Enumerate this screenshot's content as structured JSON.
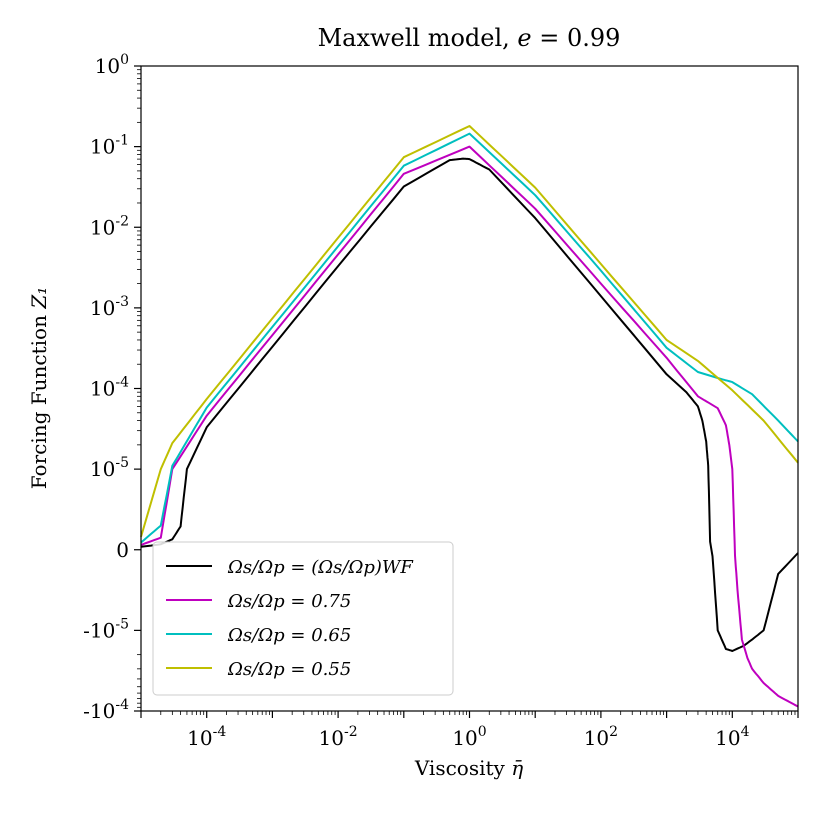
{
  "chart_data": {
    "type": "line",
    "title": "Maxwell model, e = 0.99",
    "xlabel": "Viscosity η̄",
    "ylabel": "Forcing Function Z₁",
    "x_scale": "log",
    "y_scale": "symlog",
    "xlim": [
      1e-05,
      100000.0
    ],
    "ylim": [
      -0.0001,
      1
    ],
    "x_ticks": [
      {
        "value": 0.0001,
        "label": "10-4",
        "base": "10",
        "exp": "-4"
      },
      {
        "value": 0.01,
        "label": "10-2",
        "base": "10",
        "exp": "-2"
      },
      {
        "value": 1,
        "label": "100",
        "base": "10",
        "exp": "0"
      },
      {
        "value": 100,
        "label": "102",
        "base": "10",
        "exp": "2"
      },
      {
        "value": 10000,
        "label": "104",
        "base": "10",
        "exp": "4"
      }
    ],
    "y_ticks": [
      {
        "value": 1,
        "label": "100",
        "base": "10",
        "exp": "0"
      },
      {
        "value": 0.1,
        "label": "10-1",
        "base": "10",
        "exp": "-1"
      },
      {
        "value": 0.01,
        "label": "10-2",
        "base": "10",
        "exp": "-2"
      },
      {
        "value": 0.001,
        "label": "10-3",
        "base": "10",
        "exp": "-3"
      },
      {
        "value": 0.0001,
        "label": "10-4",
        "base": "10",
        "exp": "-4"
      },
      {
        "value": 1e-05,
        "label": "10-5",
        "base": "10",
        "exp": "-5"
      },
      {
        "value": 0,
        "label": "0",
        "base": "0",
        "exp": ""
      },
      {
        "value": -1e-05,
        "label": "-10-5",
        "base": "-10",
        "exp": "-5"
      },
      {
        "value": -0.0001,
        "label": "-10-4",
        "base": "-10",
        "exp": "-4"
      }
    ],
    "legend_position": "lower-left",
    "series": [
      {
        "name": "Ωs/Ωp = (Ωs/Ωp)WF",
        "color": "#000000",
        "x": [
          1e-05,
          2e-05,
          3e-05,
          4e-05,
          5e-05,
          0.0001,
          0.001,
          0.01,
          0.1,
          0.5,
          0.8,
          1,
          2,
          10,
          100,
          1000,
          2000,
          3000,
          3500,
          4000,
          4300,
          4600,
          5000,
          6000,
          8000,
          10000,
          15000,
          20000,
          30000,
          50000,
          100000
        ],
        "y": [
          3.6e-07,
          6.8e-07,
          1.3e-06,
          2.9e-06,
          1e-05,
          3.3e-05,
          0.00033,
          0.0033,
          0.032,
          0.068,
          0.071,
          0.07,
          0.052,
          0.013,
          0.0014,
          0.00015,
          9e-05,
          6e-05,
          4e-05,
          2.2e-05,
          1.1e-05,
          1e-06,
          -8e-07,
          -1e-05,
          -1.7e-05,
          -1.8e-05,
          -1.55e-05,
          -1.3e-05,
          -1e-05,
          -3e-06,
          -4e-07
        ]
      },
      {
        "name": "Ωs/Ωp = 0.75",
        "color": "#bf00bf",
        "x": [
          1e-05,
          2e-05,
          3e-05,
          0.0001,
          0.001,
          0.01,
          0.1,
          1,
          10,
          100,
          1000,
          3000,
          6000,
          8000,
          9000,
          10000,
          11000,
          12000,
          14000,
          17000,
          20000,
          30000,
          50000,
          100000
        ],
        "y": [
          6e-07,
          1.5e-06,
          1e-05,
          4.6e-05,
          0.00046,
          0.0046,
          0.046,
          0.1,
          0.017,
          0.002,
          0.00024,
          8e-05,
          5.7e-05,
          3.5e-05,
          2e-05,
          1e-05,
          -7e-07,
          -5e-06,
          -1.3e-05,
          -2.2e-05,
          -3e-05,
          -4.5e-05,
          -6.5e-05,
          -8.8e-05
        ]
      },
      {
        "name": "Ωs/Ωp = 0.65",
        "color": "#00bfbf",
        "x": [
          1e-05,
          2e-05,
          3e-05,
          0.0001,
          0.001,
          0.01,
          0.1,
          1,
          10,
          100,
          1000,
          3000,
          6000,
          10000,
          20000,
          50000,
          100000
        ],
        "y": [
          9e-07,
          3e-06,
          1.1e-05,
          5.8e-05,
          0.00058,
          0.0058,
          0.058,
          0.145,
          0.025,
          0.0029,
          0.00032,
          0.00016,
          0.000135,
          0.00012,
          8.5e-05,
          4e-05,
          2.2e-05
        ]
      },
      {
        "name": "Ωs/Ωp = 0.55",
        "color": "#bfbf00",
        "x": [
          1e-05,
          2e-05,
          3e-05,
          0.0001,
          0.001,
          0.01,
          0.1,
          1,
          10,
          100,
          1000,
          3000,
          10000,
          30000,
          100000
        ],
        "y": [
          1.6e-06,
          1e-05,
          2.1e-05,
          7.4e-05,
          0.00074,
          0.0074,
          0.074,
          0.18,
          0.031,
          0.0035,
          0.0004,
          0.00022,
          9.5e-05,
          4e-05,
          1.2e-05
        ]
      }
    ]
  }
}
